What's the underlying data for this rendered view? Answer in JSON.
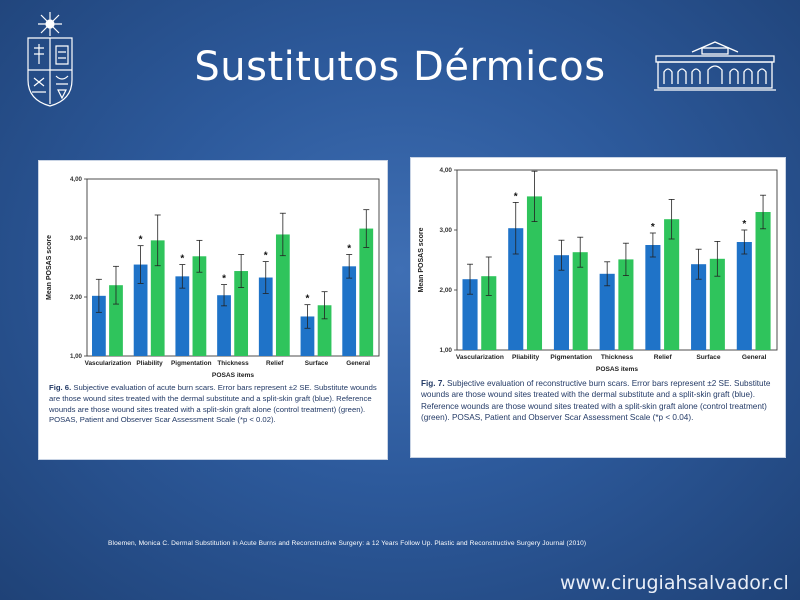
{
  "slide": {
    "title": "Sustitutos Dérmicos",
    "reference": "Bloemen, Monica C. Dermal Substitution in Acute Burns and Reconstructive Surgery: a 12 Years Follow Up. Plastic and Reconstructive Surgery Journal (2010)",
    "website": "www.cirugiahsalvador.cl",
    "colors": {
      "blue_bar": "#1f73c8",
      "green_bar": "#2fc45c",
      "background": "#2d5a9c"
    }
  },
  "figures": [
    {
      "caption_label": "Fig. 6.",
      "caption_text": "Subjective evaluation of acute burn scars. Error bars represent ±2 SE. Substitute wounds are those wound sites treated with the dermal substitute and a split-skin graft (blue). Reference wounds are those wound sites treated with a split-skin graft alone (control treatment) (green). POSAS, Patient and Observer Scar Assessment Scale (*p < 0.02)."
    },
    {
      "caption_label": "Fig. 7.",
      "caption_text": "Subjective evaluation of reconstructive burn scars. Error bars represent ±2 SE. Substitute wounds are those wound sites treated with the dermal substitute and a split-skin graft (blue). Reference wounds are those wound sites treated with a split-skin graft alone (control treatment) (green). POSAS, Patient and Observer Scar Assessment Scale (*p < 0.04)."
    }
  ],
  "chart_data": [
    {
      "type": "bar",
      "categories": [
        "Vascularization",
        "Pliability",
        "Pigmentation",
        "Thickness",
        "Relief",
        "Surface",
        "General"
      ],
      "series": [
        {
          "values": [
            2.02,
            2.55,
            2.35,
            2.03,
            2.33,
            1.67,
            2.52
          ],
          "error": [
            0.28,
            0.32,
            0.2,
            0.18,
            0.27,
            0.2,
            0.2
          ],
          "color": "#1f73c8"
        },
        {
          "values": [
            2.2,
            2.96,
            2.69,
            2.44,
            3.06,
            1.86,
            3.16
          ],
          "error": [
            0.32,
            0.43,
            0.27,
            0.28,
            0.36,
            0.23,
            0.32
          ],
          "color": "#2fc45c"
        }
      ],
      "significant": [
        false,
        true,
        true,
        true,
        true,
        true,
        true
      ],
      "significance_marker": "*",
      "xlabel": "POSAS items",
      "ylabel": "Mean POSAS score",
      "yticks": [
        "1,00",
        "2,00",
        "3,00",
        "4,00"
      ],
      "ylim": [
        1,
        4
      ]
    },
    {
      "type": "bar",
      "categories": [
        "Vascularization",
        "Pliability",
        "Pigmentation",
        "Thickness",
        "Relief",
        "Surface",
        "General"
      ],
      "series": [
        {
          "values": [
            2.18,
            3.03,
            2.58,
            2.27,
            2.75,
            2.43,
            2.8
          ],
          "error": [
            0.25,
            0.43,
            0.25,
            0.2,
            0.2,
            0.25,
            0.2
          ],
          "color": "#1f73c8"
        },
        {
          "values": [
            2.23,
            3.56,
            2.63,
            2.51,
            3.18,
            2.52,
            3.3
          ],
          "error": [
            0.32,
            0.42,
            0.25,
            0.27,
            0.33,
            0.29,
            0.28
          ],
          "color": "#2fc45c"
        }
      ],
      "significant": [
        false,
        true,
        false,
        false,
        true,
        false,
        true
      ],
      "significance_marker": "*",
      "xlabel": "POSAS items",
      "ylabel": "Mean POSAS score",
      "yticks": [
        "1,00",
        "2,00",
        "3,00",
        "4,00"
      ],
      "ylim": [
        1,
        4
      ]
    }
  ]
}
